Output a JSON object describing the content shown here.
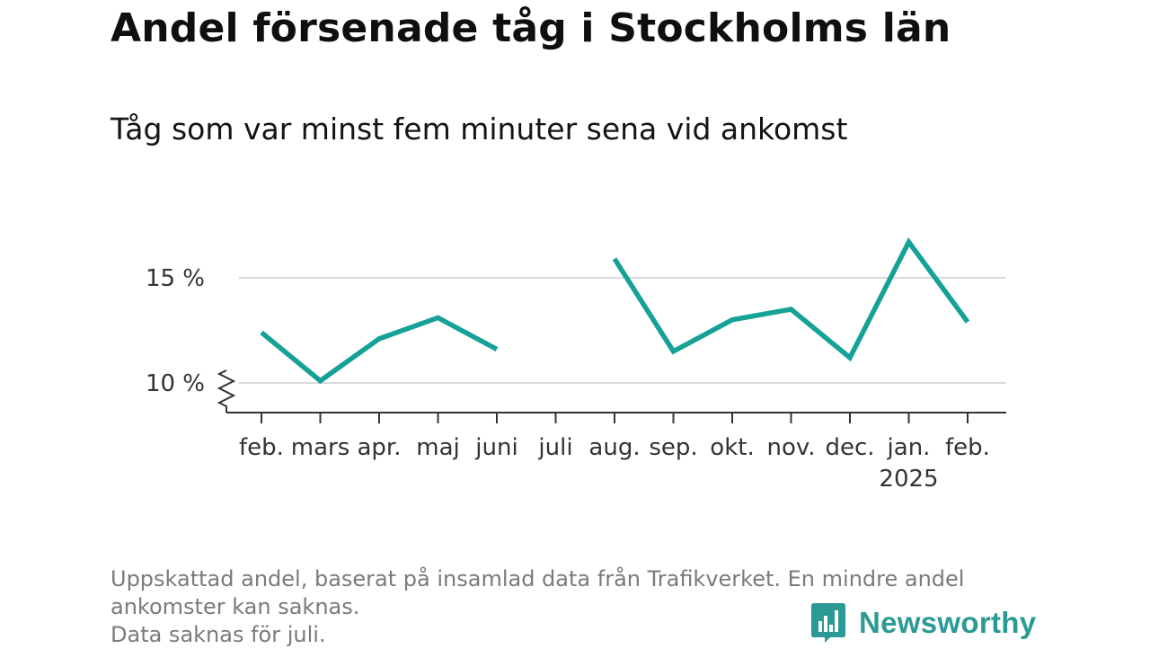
{
  "header": {
    "title": "Andel försenade tåg i Stockholms län",
    "subtitle": "Tåg som var minst fem minuter sena vid ankomst"
  },
  "chart_data": {
    "type": "line",
    "title": "Andel försenade tåg i Stockholms län",
    "subtitle": "Tåg som var minst fem minuter sena vid ankomst",
    "categories": [
      "feb.",
      "mars",
      "apr.",
      "maj",
      "juni",
      "juli",
      "aug.",
      "sep.",
      "okt.",
      "nov.",
      "dec.",
      "jan.",
      "feb."
    ],
    "year_labels": [
      "",
      "",
      "",
      "",
      "",
      "",
      "",
      "",
      "",
      "",
      "",
      "2025",
      ""
    ],
    "series": [
      {
        "values": [
          12.4,
          10.1,
          12.1,
          13.1,
          11.6,
          null,
          15.9,
          11.5,
          13.0,
          13.5,
          11.2,
          16.7,
          12.9
        ]
      }
    ],
    "yticks": [
      10,
      15
    ],
    "ytick_labels": [
      "10 %",
      "15 %"
    ],
    "ylim": [
      8.6,
      17.2
    ],
    "ylabel": "",
    "xlabel": "",
    "grid": true,
    "axis_break": true,
    "line_color": "#16a196"
  },
  "footer": {
    "notes": [
      "Uppskattad andel, baserat på insamlad data från Trafikverket. En mindre andel",
      "ankomster kan saknas.",
      "Data saknas för juli."
    ],
    "brand": "Newsworthy"
  },
  "colors": {
    "line": "#16a196",
    "grid": "#d9d9d9",
    "axis": "#333333",
    "brand": "#2c9a94",
    "note": "#7a7a7a"
  }
}
